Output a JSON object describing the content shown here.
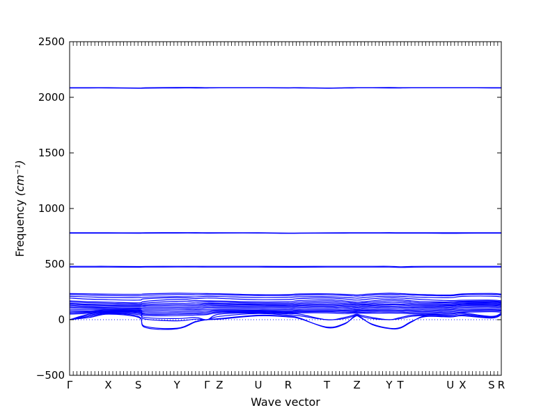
{
  "chart_data": {
    "type": "line",
    "xlabel": "Wave vector",
    "ylabel": "Frequency ",
    "ylabel_unit": "(cm⁻¹)",
    "ylim": [
      -500,
      2500
    ],
    "yticks": [
      -500,
      0,
      500,
      1000,
      1500,
      2000,
      2500
    ],
    "grid": false,
    "zero_line": "dotted",
    "x_range": [
      0,
      15.4
    ],
    "high_symmetry_points": [
      {
        "label": "Γ",
        "x": 0.0
      },
      {
        "label": "X",
        "x": 1.38
      },
      {
        "label": "S",
        "x": 2.45
      },
      {
        "label": "Y",
        "x": 3.83
      },
      {
        "label": "Γ",
        "x": 4.9
      },
      {
        "label": "Z",
        "x": 5.35
      },
      {
        "label": "U",
        "x": 6.73
      },
      {
        "label": "R",
        "x": 7.8
      },
      {
        "label": "T",
        "x": 9.18
      },
      {
        "label": "Z",
        "x": 10.25
      },
      {
        "label": "Y",
        "x": 11.4
      },
      {
        "label": "T",
        "x": 11.8
      },
      {
        "label": "U",
        "x": 13.58
      },
      {
        "label": "X",
        "x": 14.02
      },
      {
        "label": "S",
        "x": 15.05
      },
      {
        "label": "R",
        "x": 15.4
      }
    ],
    "series_color": "#0000ff",
    "band_knots_x": [
      0,
      0.7,
      1.38,
      2.45,
      2.7,
      3.83,
      4.5,
      4.9,
      5.35,
      6.73,
      7.8,
      8.2,
      9.18,
      9.8,
      10.1,
      10.25,
      10.4,
      10.8,
      11.4,
      11.8,
      12.2,
      12.7,
      13.58,
      14.02,
      15.05,
      15.4
    ],
    "series": [
      {
        "values": [
          2087,
          2087,
          2087,
          2084,
          2086,
          2088,
          2088,
          2087,
          2087,
          2087,
          2086,
          2087,
          2084,
          2086,
          2087,
          2087,
          2087,
          2087,
          2088,
          2087,
          2087,
          2087,
          2087,
          2087,
          2087,
          2087
        ]
      },
      {
        "values": [
          2083,
          2084,
          2084,
          2081,
          2082,
          2084,
          2084,
          2084,
          2085,
          2085,
          2084,
          2084,
          2081,
          2083,
          2084,
          2085,
          2085,
          2085,
          2084,
          2084,
          2085,
          2085,
          2085,
          2085,
          2084,
          2084
        ]
      },
      {
        "values": [
          782,
          782,
          782,
          781,
          782,
          783,
          783,
          782,
          782,
          782,
          779,
          780,
          781,
          782,
          782,
          782,
          782,
          782,
          783,
          782,
          782,
          782,
          782,
          782,
          782,
          782
        ]
      },
      {
        "values": [
          778,
          778,
          778,
          777,
          778,
          779,
          779,
          778,
          779,
          779,
          776,
          777,
          778,
          778,
          779,
          779,
          779,
          779,
          779,
          778,
          778,
          778,
          776,
          777,
          778,
          778
        ]
      },
      {
        "values": [
          480,
          480,
          480,
          478,
          479,
          480,
          480,
          480,
          480,
          480,
          479,
          479,
          480,
          480,
          480,
          480,
          480,
          480,
          480,
          476,
          479,
          480,
          480,
          480,
          480,
          480
        ]
      },
      {
        "values": [
          473,
          473,
          473,
          472,
          473,
          474,
          474,
          473,
          473,
          473,
          472,
          472,
          473,
          473,
          473,
          473,
          473,
          473,
          473,
          470,
          472,
          473,
          473,
          473,
          473,
          473
        ]
      },
      {
        "values": [
          235,
          233,
          230,
          228,
          232,
          238,
          236,
          235,
          234,
          225,
          226,
          232,
          233,
          228,
          225,
          222,
          225,
          232,
          238,
          235,
          230,
          226,
          222,
          232,
          236,
          230
        ]
      },
      {
        "values": [
          225,
          222,
          218,
          215,
          220,
          226,
          224,
          225,
          224,
          218,
          218,
          222,
          224,
          218,
          214,
          212,
          214,
          222,
          228,
          226,
          222,
          218,
          215,
          225,
          228,
          222
        ]
      },
      {
        "values": [
          210,
          205,
          200,
          198,
          202,
          208,
          205,
          210,
          208,
          200,
          202,
          206,
          208,
          200,
          196,
          194,
          196,
          205,
          212,
          210,
          205,
          200,
          198,
          210,
          212,
          205
        ]
      },
      {
        "values": [
          195,
          185,
          180,
          176,
          188,
          198,
          190,
          195,
          192,
          180,
          182,
          190,
          196,
          186,
          178,
          176,
          178,
          188,
          198,
          195,
          188,
          180,
          172,
          175,
          176,
          170
        ]
      },
      {
        "values": [
          170,
          162,
          158,
          152,
          165,
          182,
          172,
          170,
          168,
          160,
          162,
          172,
          180,
          170,
          160,
          158,
          160,
          170,
          184,
          180,
          170,
          162,
          160,
          165,
          168,
          162
        ]
      },
      {
        "values": [
          160,
          152,
          148,
          142,
          150,
          165,
          158,
          160,
          158,
          150,
          150,
          158,
          168,
          158,
          150,
          148,
          150,
          158,
          170,
          168,
          158,
          150,
          155,
          158,
          160,
          155
        ]
      },
      {
        "values": [
          148,
          140,
          136,
          132,
          138,
          148,
          142,
          148,
          146,
          140,
          140,
          146,
          154,
          146,
          140,
          138,
          140,
          146,
          156,
          154,
          146,
          140,
          145,
          150,
          152,
          148
        ]
      },
      {
        "values": [
          140,
          132,
          128,
          125,
          128,
          135,
          130,
          140,
          138,
          132,
          130,
          136,
          142,
          135,
          132,
          130,
          132,
          136,
          142,
          140,
          135,
          130,
          135,
          142,
          145,
          140
        ]
      },
      {
        "values": [
          130,
          122,
          118,
          115,
          118,
          124,
          120,
          130,
          128,
          124,
          122,
          128,
          132,
          126,
          122,
          120,
          122,
          128,
          134,
          132,
          126,
          122,
          128,
          136,
          138,
          132
        ]
      },
      {
        "values": [
          120,
          112,
          108,
          104,
          106,
          110,
          108,
          118,
          118,
          114,
          112,
          118,
          122,
          116,
          112,
          110,
          112,
          118,
          122,
          120,
          115,
          112,
          120,
          128,
          130,
          124
        ]
      },
      {
        "values": [
          110,
          104,
          100,
          96,
          94,
          98,
          96,
          108,
          108,
          104,
          102,
          108,
          112,
          106,
          102,
          100,
          102,
          108,
          112,
          110,
          106,
          104,
          110,
          118,
          122,
          116
        ]
      },
      {
        "values": [
          96,
          92,
          92,
          88,
          82,
          86,
          86,
          94,
          96,
          92,
          90,
          96,
          100,
          94,
          92,
          90,
          92,
          96,
          100,
          98,
          94,
          92,
          100,
          108,
          112,
          106
        ]
      },
      {
        "values": [
          82,
          80,
          86,
          82,
          70,
          72,
          74,
          80,
          86,
          84,
          80,
          86,
          88,
          84,
          82,
          82,
          84,
          86,
          88,
          86,
          84,
          82,
          90,
          96,
          100,
          94
        ]
      },
      {
        "values": [
          70,
          72,
          80,
          76,
          58,
          60,
          62,
          68,
          78,
          78,
          72,
          78,
          80,
          76,
          74,
          76,
          76,
          78,
          80,
          78,
          74,
          72,
          80,
          86,
          90,
          84
        ]
      },
      {
        "values": [
          60,
          66,
          75,
          70,
          48,
          48,
          52,
          56,
          70,
          72,
          66,
          70,
          72,
          66,
          66,
          68,
          66,
          68,
          70,
          68,
          64,
          62,
          70,
          76,
          82,
          76
        ]
      },
      {
        "values": [
          50,
          58,
          70,
          64,
          38,
          36,
          42,
          46,
          62,
          66,
          60,
          62,
          62,
          55,
          58,
          60,
          58,
          58,
          60,
          58,
          54,
          52,
          60,
          66,
          72,
          66
        ]
      },
      {
        "values": [
          0,
          50,
          65,
          55,
          20,
          10,
          20,
          0,
          50,
          60,
          52,
          50,
          0,
          20,
          40,
          50,
          40,
          20,
          0,
          20,
          40,
          45,
          50,
          60,
          30,
          60
        ]
      },
      {
        "values": [
          0,
          40,
          60,
          45,
          5,
          -10,
          5,
          0,
          30,
          55,
          40,
          35,
          0,
          10,
          30,
          45,
          30,
          10,
          0,
          10,
          30,
          38,
          40,
          50,
          25,
          55
        ]
      },
      {
        "values": [
          0,
          30,
          55,
          30,
          -70,
          -82,
          -20,
          0,
          10,
          40,
          30,
          15,
          -72,
          -40,
          20,
          40,
          20,
          -45,
          -80,
          -75,
          -20,
          35,
          30,
          40,
          20,
          50
        ]
      },
      {
        "values": [
          0,
          20,
          50,
          22,
          -60,
          -76,
          -15,
          0,
          5,
          35,
          25,
          10,
          -66,
          -35,
          15,
          35,
          15,
          -40,
          -76,
          -70,
          -15,
          28,
          25,
          35,
          15,
          45
        ]
      }
    ]
  }
}
